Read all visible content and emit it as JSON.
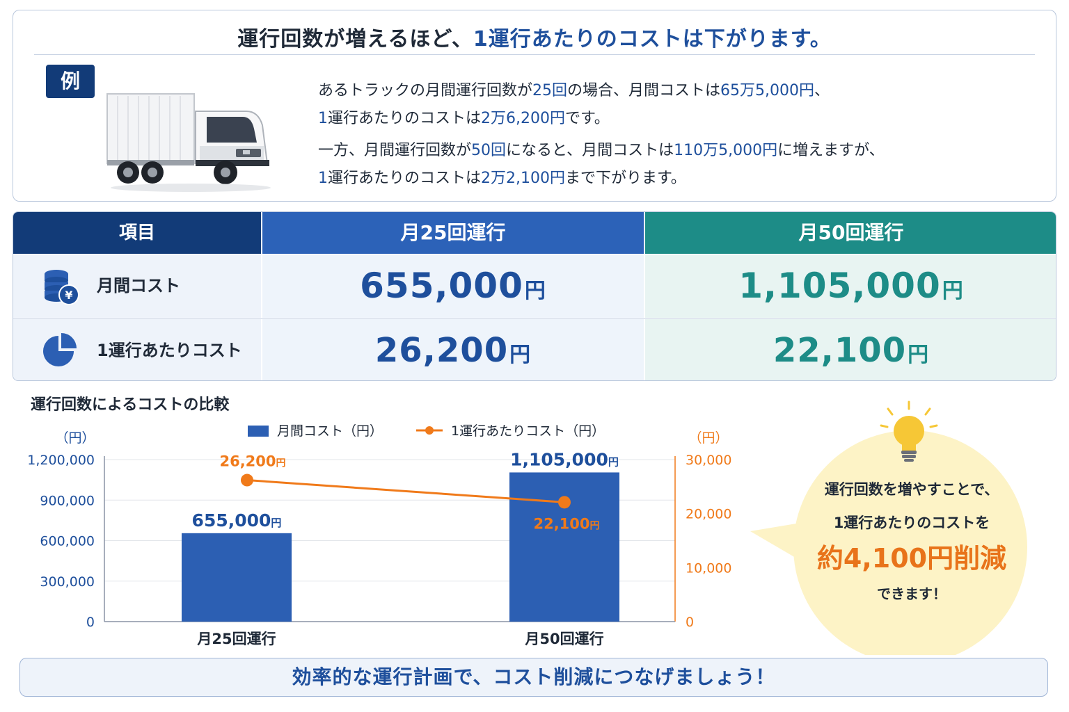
{
  "headline": {
    "part1": "運行回数が増えるほど、",
    "part2": "1運行あたりのコストは下がります。"
  },
  "example": {
    "badge": "例",
    "line1": [
      "あるトラックの月間運行回数が",
      "25回",
      "の場合、月間コストは",
      "65万5,000円",
      "、"
    ],
    "line2": [
      "1",
      "運行あたりのコストは",
      "2万6,200円",
      "です。"
    ],
    "line3": [
      "一方、月間運行回数が",
      "50回",
      "になると、月間コストは",
      "110万5,000円",
      "に増えますが、"
    ],
    "line4": [
      "1",
      "運行あたりのコストは",
      "2万2,100円",
      "まで下がります。"
    ]
  },
  "table": {
    "headers": [
      "項目",
      "月25回運行",
      "月50回運行"
    ],
    "rows": [
      {
        "label": "月間コスト",
        "icon": "coins-yen-icon",
        "v25": "655,000",
        "v50": "1,105,000",
        "unit": "円"
      },
      {
        "label": "1運行あたりコスト",
        "icon": "pie-chart-icon",
        "v25": "26,200",
        "v50": "22,100",
        "unit": "円"
      }
    ]
  },
  "chart_title": "運行回数によるコストの比較",
  "chart_data": {
    "type": "bar",
    "categories": [
      "月25回運行",
      "月50回運行"
    ],
    "series": [
      {
        "name": "月間コスト（円）",
        "type": "bar",
        "axis": "left",
        "values": [
          655000,
          1105000
        ],
        "labels": [
          "655,000",
          "1,105,000"
        ],
        "color": "#2c5fb3"
      },
      {
        "name": "1運行あたりコスト（円）",
        "type": "line",
        "axis": "right",
        "values": [
          26200,
          22100
        ],
        "labels": [
          "26,200",
          "22,100"
        ],
        "color": "#f07a1a"
      }
    ],
    "label_unit": "円",
    "y_left": {
      "unit": "（円）",
      "range": [
        0,
        1200000
      ],
      "ticks": [
        0,
        300000,
        600000,
        900000,
        1200000
      ],
      "tick_labels": [
        "0",
        "300,000",
        "600,000",
        "900,000",
        "1,200,000"
      ]
    },
    "y_right": {
      "unit": "（円）",
      "range": [
        0,
        30000
      ],
      "ticks": [
        0,
        10000,
        20000,
        30000
      ],
      "tick_labels": [
        "0",
        "10,000",
        "20,000",
        "30,000"
      ]
    },
    "legend_position": "top",
    "grid": true
  },
  "bubble": {
    "line1": "運行回数を増やすことで、",
    "line2": "1運行あたりのコストを",
    "line3": "約4,100円削減",
    "line4": "できます！"
  },
  "footer": "効率的な運行計画で、コスト削減につなげましょう！",
  "colors": {
    "navy": "#123b78",
    "blue": "#2c62b8",
    "teal": "#1d8c87",
    "orange": "#f07a1a"
  }
}
